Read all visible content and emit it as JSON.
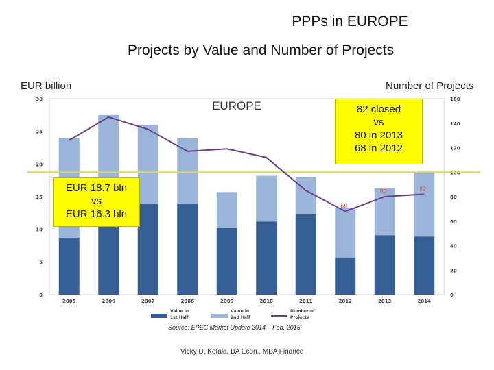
{
  "slide": {
    "title": "PPPs in EUROPE",
    "subtitle": "Projects by Value and Number of Projects",
    "source": "Source: EPEC Market Update 2014 – Feb. 2015",
    "author": "Vicky D. Kefala, BA Econ., MBA Finance",
    "callout_left": [
      "EUR 18.7 bln",
      "vs",
      "EUR 16.3 bln"
    ],
    "callout_right": [
      "82 closed",
      "vs",
      "80 in 2013",
      "68 in 2012"
    ]
  },
  "chart_data": {
    "type": "bar",
    "title": "EUROPE",
    "ylabel": "EUR billion",
    "y2label": "Number of Projects",
    "ylim": [
      0,
      30
    ],
    "y2lim": [
      0,
      160
    ],
    "yticks": [
      "0",
      "5",
      "10",
      "15",
      "20",
      "25",
      "30"
    ],
    "y2ticks": [
      "0",
      "20",
      "40",
      "60",
      "80",
      "100",
      "120",
      "140",
      "160"
    ],
    "categories": [
      "2005",
      "2006",
      "2007",
      "2008",
      "2009",
      "2010",
      "2011",
      "2012",
      "2013",
      "2014"
    ],
    "series": [
      {
        "name": "Value in 1st Half",
        "kind": "stacked-bar",
        "color": "#355f94",
        "values": [
          8.7,
          14.5,
          13.9,
          13.9,
          10.2,
          11.2,
          12.3,
          5.7,
          9.1,
          8.9
        ]
      },
      {
        "name": "Value in 2nd Half",
        "kind": "stacked-bar",
        "color": "#9ab5d9",
        "values": [
          15.3,
          13.0,
          12.1,
          10.1,
          5.5,
          7.0,
          5.7,
          7.6,
          7.2,
          9.8
        ]
      },
      {
        "name": "Number of Projects",
        "kind": "line",
        "axis": "right",
        "color": "#6e3c8f",
        "values": [
          126,
          145,
          135,
          117,
          119,
          112,
          85,
          68,
          80,
          82
        ]
      }
    ],
    "point_labels": [
      {
        "index": 7,
        "text": "68"
      },
      {
        "index": 8,
        "text": "80"
      },
      {
        "index": 9,
        "text": "82"
      }
    ],
    "reference_line": {
      "axis": "right",
      "value": 100,
      "color": "#e2d84a"
    },
    "legend": [
      {
        "label": [
          "Value in",
          "1st Half"
        ],
        "color": "#355f94"
      },
      {
        "label": [
          "Value in",
          "2nd Half"
        ],
        "color": "#9ab5d9"
      },
      {
        "label": [
          "Number of",
          "Projects"
        ],
        "color": "#6e3c8f"
      }
    ],
    "point_label_color": "#d94a3a"
  }
}
